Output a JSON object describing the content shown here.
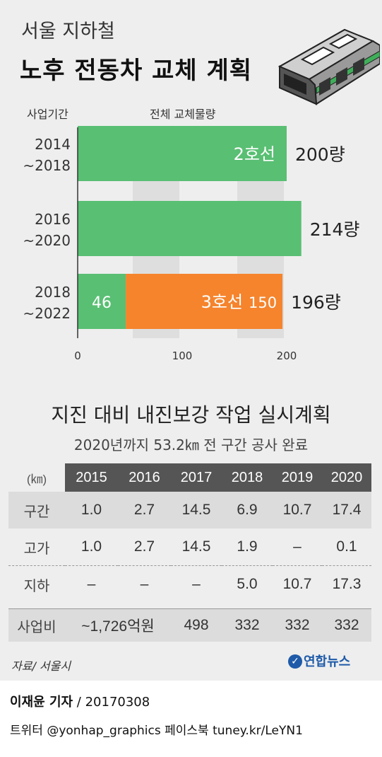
{
  "header": {
    "title_line1": "서울 지하철",
    "title_line2": "노후 전동차 교체 계획",
    "col_label_period": "사업기간",
    "col_label_total": "전체 교체물량"
  },
  "chart_data": {
    "type": "bar",
    "orientation": "horizontal",
    "stacked": true,
    "title": "노후 전동차 교체 계획",
    "categories": [
      {
        "line1": "2014",
        "line2": "~2018"
      },
      {
        "line1": "2016",
        "line2": "~2020"
      },
      {
        "line1": "2018",
        "line2": "~2022"
      }
    ],
    "series": [
      {
        "name": "2호선",
        "color": "#59bf73",
        "values": [
          200,
          214,
          46
        ]
      },
      {
        "name": "3호선",
        "color": "#f5842d",
        "values": [
          0,
          0,
          150
        ]
      }
    ],
    "segment_labels": [
      [
        {
          "text": "2호선",
          "series": 0
        }
      ],
      [],
      [
        {
          "text": "46",
          "series": 0
        },
        {
          "text": "3호선",
          "series": 1,
          "value_text": "150"
        }
      ]
    ],
    "totals": [
      "200량",
      "214량",
      "196량"
    ],
    "xlim": [
      0,
      220
    ],
    "xticks": [
      0,
      100,
      200
    ],
    "grid": "vertical bands",
    "legend": "none"
  },
  "seismic": {
    "title": "지진 대비 내진보강 작업 실시계획",
    "subtitle": "2020년까지 53.2㎞ 전 구간 공사 완료",
    "unit": "(㎞)",
    "years": [
      "2015",
      "2016",
      "2017",
      "2018",
      "2019",
      "2020"
    ],
    "rows": {
      "section": {
        "label": "구간",
        "values": [
          "1.0",
          "2.7",
          "14.5",
          "6.9",
          "10.7",
          "17.4"
        ]
      },
      "elevated": {
        "label": "고가",
        "values": [
          "1.0",
          "2.7",
          "14.5",
          "1.9",
          "–",
          "0.1"
        ]
      },
      "underground": {
        "label": "지하",
        "values": [
          "–",
          "–",
          "–",
          "5.0",
          "10.7",
          "17.3"
        ]
      },
      "budget": {
        "label": "사업비",
        "values": [
          "~1,726억원",
          "498",
          "332",
          "332",
          "332"
        ]
      }
    }
  },
  "footer": {
    "source": "자료/ 서울시",
    "logo_text": "연합뉴스",
    "reporter": "이재윤 기자",
    "date_text": " / 20170308",
    "social": "트위터 @yonhap_graphics  페이스북 tuney.kr/LeYN1"
  },
  "colors": {
    "background": "#eeeeee",
    "line2_green": "#59bf73",
    "line3_orange": "#f5842d",
    "table_header": "#555555",
    "logo_blue": "#1e5aa8"
  }
}
